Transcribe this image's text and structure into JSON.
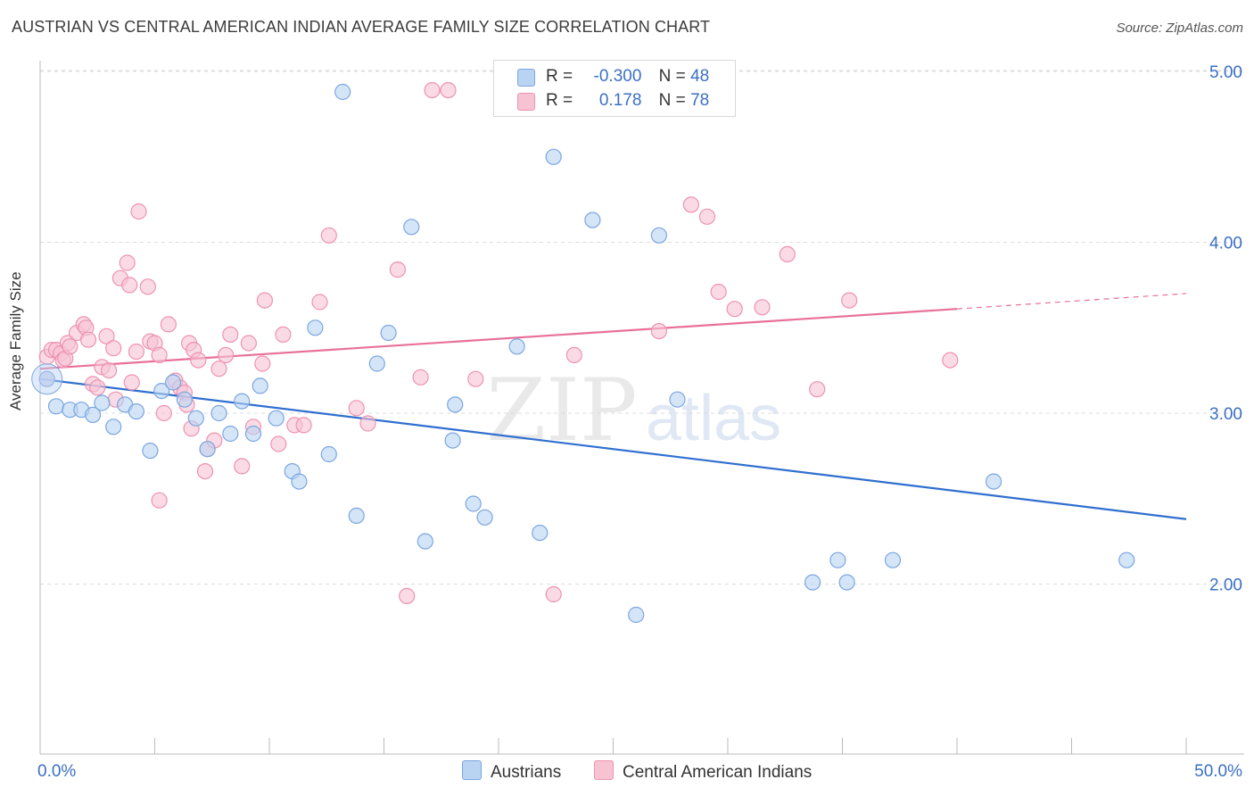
{
  "title": "AUSTRIAN VS CENTRAL AMERICAN INDIAN AVERAGE FAMILY SIZE CORRELATION CHART",
  "source": "Source: ZipAtlas.com",
  "legend": {
    "r_label": "R =",
    "n_label": "N =",
    "austrians": {
      "r": "-0.300",
      "n": "48"
    },
    "cai": {
      "r": "0.178",
      "n": "78"
    }
  },
  "watermark": {
    "zip": "ZIP",
    "atlas": "atlas"
  },
  "colors": {
    "austrians_fill": "#b9d3f3",
    "austrians_stroke": "#7aa6e0",
    "austrians_line": "#2f6fd0",
    "cai_fill": "#f7c3d3",
    "cai_stroke": "#ee92b0",
    "cai_line": "#e8709a",
    "axis_text": "#3a6fc4"
  },
  "chart_data": {
    "type": "scatter",
    "title": "AUSTRIAN VS CENTRAL AMERICAN INDIAN AVERAGE FAMILY SIZE CORRELATION CHART",
    "xlabel": "",
    "ylabel": "Average Family Size",
    "xlim": [
      0,
      50
    ],
    "ylim": [
      1.0,
      5.15
    ],
    "x_tick_labels": [
      "0.0%",
      "50.0%"
    ],
    "y_ticks": [
      2.0,
      3.0,
      4.0,
      5.0
    ],
    "y_tick_labels": [
      "2.00",
      "3.00",
      "4.00",
      "5.00"
    ],
    "grid": true,
    "legend_position": "top-center",
    "series": [
      {
        "name": "Austrians",
        "color": "#7aa6e0",
        "trend": {
          "x": [
            0,
            50
          ],
          "y": [
            3.2,
            2.38
          ]
        },
        "points": [
          [
            0.3,
            3.2
          ],
          [
            0.7,
            3.04
          ],
          [
            1.3,
            3.02
          ],
          [
            1.8,
            3.02
          ],
          [
            2.3,
            2.99
          ],
          [
            2.7,
            3.06
          ],
          [
            3.2,
            2.92
          ],
          [
            3.7,
            3.05
          ],
          [
            4.2,
            3.01
          ],
          [
            4.8,
            2.78
          ],
          [
            5.3,
            3.13
          ],
          [
            5.8,
            3.18
          ],
          [
            6.3,
            3.08
          ],
          [
            6.8,
            2.97
          ],
          [
            7.3,
            2.79
          ],
          [
            7.8,
            3.0
          ],
          [
            8.3,
            2.88
          ],
          [
            8.8,
            3.07
          ],
          [
            9.3,
            2.88
          ],
          [
            9.6,
            3.16
          ],
          [
            10.3,
            2.97
          ],
          [
            11.0,
            2.66
          ],
          [
            11.3,
            2.6
          ],
          [
            12.0,
            3.5
          ],
          [
            12.6,
            2.76
          ],
          [
            13.2,
            4.88
          ],
          [
            13.8,
            2.4
          ],
          [
            14.7,
            3.29
          ],
          [
            15.2,
            3.47
          ],
          [
            16.2,
            4.09
          ],
          [
            16.8,
            2.25
          ],
          [
            18.1,
            3.05
          ],
          [
            18.0,
            2.84
          ],
          [
            18.9,
            2.47
          ],
          [
            19.4,
            2.39
          ],
          [
            20.8,
            3.39
          ],
          [
            21.8,
            2.3
          ],
          [
            22.4,
            4.5
          ],
          [
            24.1,
            4.13
          ],
          [
            26.0,
            1.82
          ],
          [
            27.0,
            4.04
          ],
          [
            27.8,
            3.08
          ],
          [
            33.7,
            2.01
          ],
          [
            34.8,
            2.14
          ],
          [
            35.2,
            2.01
          ],
          [
            37.2,
            2.14
          ],
          [
            41.6,
            2.6
          ],
          [
            47.4,
            2.14
          ]
        ]
      },
      {
        "name": "Central American Indians",
        "color": "#ee92b0",
        "trend": {
          "x": [
            0,
            40
          ],
          "y": [
            3.26,
            3.61
          ]
        },
        "trend_dashed": {
          "x": [
            40,
            50
          ],
          "y": [
            3.61,
            3.7
          ]
        },
        "points": [
          [
            0.3,
            3.2
          ],
          [
            0.3,
            3.33
          ],
          [
            0.5,
            3.37
          ],
          [
            0.7,
            3.37
          ],
          [
            0.9,
            3.35
          ],
          [
            1.0,
            3.31
          ],
          [
            1.1,
            3.32
          ],
          [
            1.2,
            3.41
          ],
          [
            1.3,
            3.39
          ],
          [
            1.6,
            3.47
          ],
          [
            1.9,
            3.52
          ],
          [
            2.0,
            3.5
          ],
          [
            2.1,
            3.43
          ],
          [
            2.3,
            3.17
          ],
          [
            2.5,
            3.15
          ],
          [
            2.7,
            3.27
          ],
          [
            2.9,
            3.45
          ],
          [
            3.0,
            3.25
          ],
          [
            3.2,
            3.38
          ],
          [
            3.3,
            3.08
          ],
          [
            3.5,
            3.79
          ],
          [
            3.8,
            3.88
          ],
          [
            3.9,
            3.75
          ],
          [
            4.0,
            3.18
          ],
          [
            4.2,
            3.36
          ],
          [
            4.3,
            4.18
          ],
          [
            4.7,
            3.74
          ],
          [
            4.8,
            3.42
          ],
          [
            5.0,
            3.41
          ],
          [
            5.2,
            3.34
          ],
          [
            5.2,
            2.49
          ],
          [
            5.4,
            3.0
          ],
          [
            5.6,
            3.52
          ],
          [
            5.9,
            3.19
          ],
          [
            6.1,
            3.15
          ],
          [
            6.3,
            3.12
          ],
          [
            6.4,
            3.05
          ],
          [
            6.5,
            3.41
          ],
          [
            6.6,
            2.91
          ],
          [
            6.7,
            3.37
          ],
          [
            6.9,
            3.31
          ],
          [
            7.2,
            2.66
          ],
          [
            7.3,
            2.79
          ],
          [
            7.6,
            2.84
          ],
          [
            7.8,
            3.26
          ],
          [
            8.1,
            3.34
          ],
          [
            8.3,
            3.46
          ],
          [
            8.8,
            2.69
          ],
          [
            9.1,
            3.41
          ],
          [
            9.3,
            2.92
          ],
          [
            9.7,
            3.29
          ],
          [
            9.8,
            3.66
          ],
          [
            10.4,
            2.82
          ],
          [
            10.6,
            3.46
          ],
          [
            11.1,
            2.93
          ],
          [
            11.5,
            2.93
          ],
          [
            12.2,
            3.65
          ],
          [
            12.6,
            4.04
          ],
          [
            13.8,
            3.03
          ],
          [
            14.3,
            2.94
          ],
          [
            15.6,
            3.84
          ],
          [
            16.0,
            1.93
          ],
          [
            16.6,
            3.21
          ],
          [
            17.1,
            4.89
          ],
          [
            17.8,
            4.89
          ],
          [
            19.0,
            3.2
          ],
          [
            22.4,
            1.94
          ],
          [
            23.3,
            3.34
          ],
          [
            27.0,
            3.48
          ],
          [
            28.4,
            4.22
          ],
          [
            29.1,
            4.15
          ],
          [
            29.6,
            3.71
          ],
          [
            30.3,
            3.61
          ],
          [
            31.5,
            3.62
          ],
          [
            32.6,
            3.93
          ],
          [
            33.9,
            3.14
          ],
          [
            35.3,
            3.66
          ],
          [
            39.7,
            3.31
          ]
        ]
      }
    ]
  }
}
